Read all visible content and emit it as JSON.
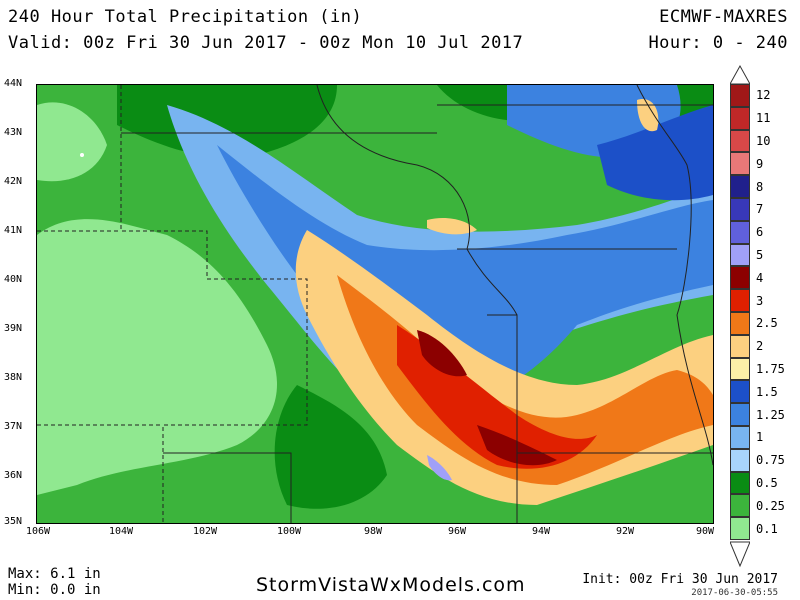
{
  "header": {
    "title": "240 Hour Total Precipitation (in)",
    "valid": "Valid: 00z Fri 30 Jun 2017 - 00z Mon 10 Jul 2017",
    "model": "ECMWF-MAXRES",
    "hour": "Hour: 0 - 240"
  },
  "map": {
    "lat_labels": [
      "44N",
      "43N",
      "42N",
      "41N",
      "40N",
      "39N",
      "38N",
      "37N",
      "36N",
      "35N"
    ],
    "lon_labels": [
      "106W",
      "104W",
      "102W",
      "100W",
      "98W",
      "96W",
      "94W",
      "92W",
      "90W"
    ]
  },
  "legend": {
    "units": "in",
    "levels": [
      {
        "label": "12",
        "color": "#a01818"
      },
      {
        "label": "11",
        "color": "#c02828"
      },
      {
        "label": "10",
        "color": "#d84848"
      },
      {
        "label": "9",
        "color": "#e87878"
      },
      {
        "label": "8",
        "color": "#20208c"
      },
      {
        "label": "7",
        "color": "#3838b8"
      },
      {
        "label": "6",
        "color": "#6060dc"
      },
      {
        "label": "5",
        "color": "#a0a0f8"
      },
      {
        "label": "4",
        "color": "#8c0000"
      },
      {
        "label": "3",
        "color": "#e02000"
      },
      {
        "label": "2.5",
        "color": "#f07818"
      },
      {
        "label": "2",
        "color": "#fcd080"
      },
      {
        "label": "1.75",
        "color": "#fcf0a8"
      },
      {
        "label": "1.5",
        "color": "#1c50c8"
      },
      {
        "label": "1.25",
        "color": "#3c82e0"
      },
      {
        "label": "1",
        "color": "#78b4f0"
      },
      {
        "label": "0.75",
        "color": "#a8d4fc"
      },
      {
        "label": "0.5",
        "color": "#0a8c14"
      },
      {
        "label": "0.25",
        "color": "#3cb43c"
      },
      {
        "label": "0.1",
        "color": "#90e890"
      }
    ]
  },
  "footer": {
    "max": "Max: 6.1 in",
    "min": "Min: 0.0 in",
    "site": "StormVistaWxModels.com",
    "init": "Init: 00z Fri 30 Jun 2017",
    "timestamp": "2017-06-30-05:55"
  }
}
